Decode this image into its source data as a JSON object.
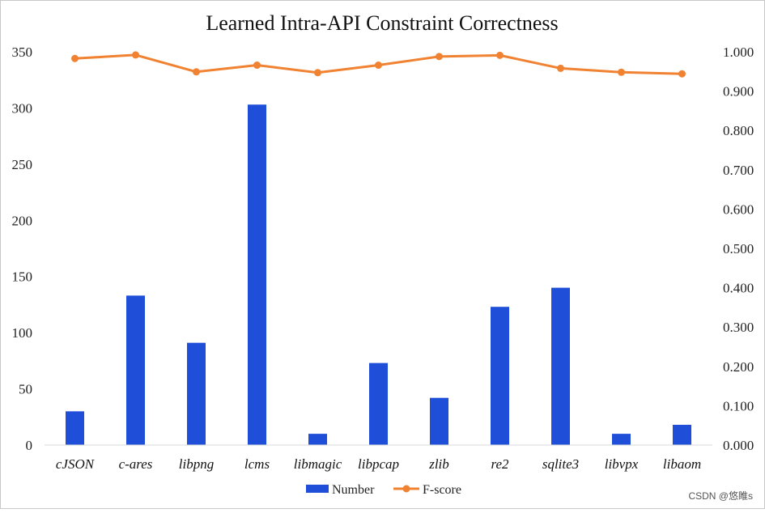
{
  "chart_data": {
    "type": "bar+line",
    "title": "Learned Intra-API Constraint Correctness",
    "categories": [
      "cJSON",
      "c-ares",
      "libpng",
      "lcms",
      "libmagic",
      "libpcap",
      "zlib",
      "re2",
      "sqlite3",
      "libvpx",
      "libaom"
    ],
    "series": [
      {
        "name": "Number",
        "type": "bar",
        "axis": "left",
        "color": "#1f4fd8",
        "values": [
          30,
          133,
          91,
          303,
          10,
          73,
          42,
          123,
          140,
          10,
          18
        ]
      },
      {
        "name": "F-score",
        "type": "line",
        "axis": "right",
        "color": "#f08232",
        "values": [
          0.983,
          0.992,
          0.949,
          0.966,
          0.947,
          0.966,
          0.988,
          0.991,
          0.958,
          0.948,
          0.944
        ]
      }
    ],
    "left_axis": {
      "ylim": [
        0,
        350
      ],
      "ticks": [
        "0",
        "50",
        "100",
        "150",
        "200",
        "250",
        "300",
        "350"
      ]
    },
    "right_axis": {
      "ylim": [
        0,
        1.0
      ],
      "ticks": [
        "0.000",
        "0.100",
        "0.200",
        "0.300",
        "0.400",
        "0.500",
        "0.600",
        "0.700",
        "0.800",
        "0.900",
        "1.000"
      ]
    },
    "grid": false,
    "legend": "bottom-center",
    "legend_entries": [
      "Number",
      "F-score"
    ]
  },
  "watermark": "CSDN @悠睢s"
}
